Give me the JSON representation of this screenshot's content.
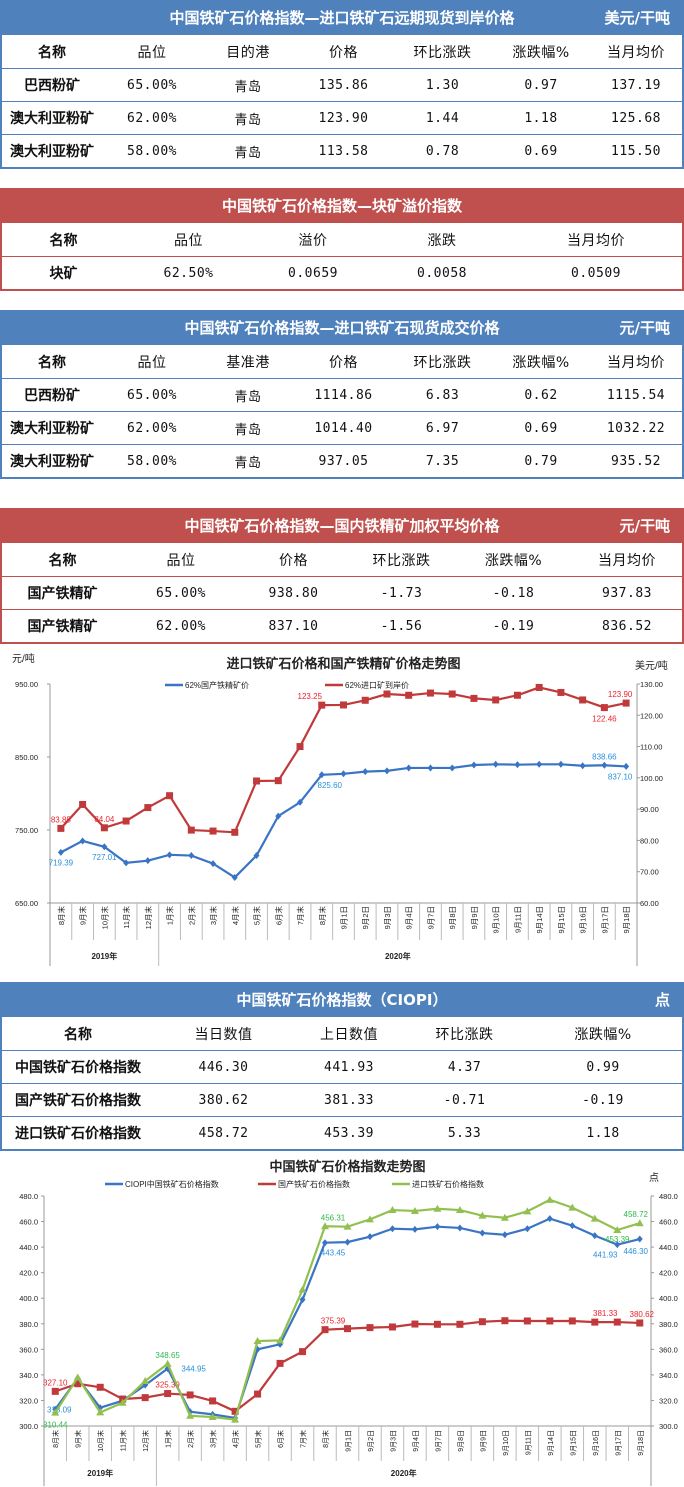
{
  "table1": {
    "title": "中国铁矿石价格指数—进口铁矿石远期现货到岸价格",
    "unit": "美元/干吨",
    "headers": [
      "名称",
      "品位",
      "目的港",
      "价格",
      "环比涨跌",
      "涨跌幅%",
      "当月均价"
    ],
    "rows": [
      [
        "巴西粉矿",
        "65.00%",
        "青岛",
        "135.86",
        "1.30",
        "0.97",
        "137.19"
      ],
      [
        "澳大利亚粉矿",
        "62.00%",
        "青岛",
        "123.90",
        "1.44",
        "1.18",
        "125.68"
      ],
      [
        "澳大利亚粉矿",
        "58.00%",
        "青岛",
        "113.58",
        "0.78",
        "0.69",
        "115.50"
      ]
    ]
  },
  "table2": {
    "title": "中国铁矿石价格指数—块矿溢价指数",
    "headers": [
      "名称",
      "品位",
      "溢价",
      "涨跌",
      "当月均价"
    ],
    "rows": [
      [
        "块矿",
        "62.50%",
        "0.0659",
        "0.0058",
        "0.0509"
      ]
    ]
  },
  "table3": {
    "title": "中国铁矿石价格指数—进口铁矿石现货成交价格",
    "unit": "元/干吨",
    "headers": [
      "名称",
      "品位",
      "基准港",
      "价格",
      "环比涨跌",
      "涨跌幅%",
      "当月均价"
    ],
    "rows": [
      [
        "巴西粉矿",
        "65.00%",
        "青岛",
        "1114.86",
        "6.83",
        "0.62",
        "1115.54"
      ],
      [
        "澳大利亚粉矿",
        "62.00%",
        "青岛",
        "1014.40",
        "6.97",
        "0.69",
        "1032.22"
      ],
      [
        "澳大利亚粉矿",
        "58.00%",
        "青岛",
        "937.05",
        "7.35",
        "0.79",
        "935.52"
      ]
    ]
  },
  "table4": {
    "title": "中国铁矿石价格指数—国内铁精矿加权平均价格",
    "unit": "元/干吨",
    "headers": [
      "名称",
      "品位",
      "价格",
      "环比涨跌",
      "涨跌幅%",
      "当月均价"
    ],
    "rows": [
      [
        "国产铁精矿",
        "65.00%",
        "938.80",
        "-1.73",
        "-0.18",
        "937.83"
      ],
      [
        "国产铁精矿",
        "62.00%",
        "837.10",
        "-1.56",
        "-0.19",
        "836.52"
      ]
    ]
  },
  "table5": {
    "title": "中国铁矿石价格指数（CIOPI）",
    "unit": "点",
    "headers": [
      "名称",
      "当日数值",
      "上日数值",
      "环比涨跌",
      "涨跌幅%"
    ],
    "rows": [
      [
        "中国铁矿石价格指数",
        "446.30",
        "441.93",
        "4.37",
        "0.99"
      ],
      [
        "国产铁矿石价格指数",
        "380.62",
        "381.33",
        "-0.71",
        "-0.19"
      ],
      [
        "进口铁矿石价格指数",
        "458.72",
        "453.39",
        "5.33",
        "1.18"
      ]
    ]
  },
  "colors": {
    "blue": "#4f81bd",
    "red": "#c0504d",
    "line_blue": "#3a74c4",
    "line_red": "#c0393b",
    "line_green": "#92c050"
  },
  "chart_data": [
    {
      "type": "line",
      "title": "进口铁矿石价格和国产铁精矿价格走势图",
      "ylabel_left": "元/吨",
      "ylabel_right": "美元/吨",
      "ylim_left": [
        650,
        950
      ],
      "ylim_right": [
        60,
        130
      ],
      "yticks_left": [
        "650.00",
        "750.00",
        "850.00",
        "950.00"
      ],
      "yticks_right": [
        "60.00",
        "70.00",
        "80.00",
        "90.00",
        "100.00",
        "110.00",
        "120.00",
        "130.00"
      ],
      "categories": [
        "8月末",
        "9月末",
        "10月末",
        "11月末",
        "12月末",
        "1月末",
        "2月末",
        "3月末",
        "4月末",
        "5月末",
        "6月末",
        "7月末",
        "8月末",
        "9月1日",
        "9月2日",
        "9月3日",
        "9月4日",
        "9月7日",
        "9月8日",
        "9月9日",
        "9月10日",
        "9月11日",
        "9月14日",
        "9月15日",
        "9月16日",
        "9月17日",
        "9月18日"
      ],
      "groups": [
        {
          "label": "2019年",
          "count": 5
        },
        {
          "label": "2020年",
          "count": 22
        }
      ],
      "legend": "top",
      "grid": false,
      "series": [
        {
          "name": "62%国产铁精矿价",
          "axis": "left",
          "color": "#3a74c4",
          "marker": "diamond",
          "values": [
            719.39,
            735,
            727.01,
            705,
            708,
            716,
            715,
            704,
            685,
            715,
            769,
            788,
            825.6,
            827,
            830,
            831,
            835,
            835,
            835,
            839,
            840,
            839.5,
            840,
            840,
            838,
            838.66,
            837.1
          ],
          "labels": [
            {
              "i": 0,
              "text": "719.39"
            },
            {
              "i": 2,
              "text": "727.01"
            },
            {
              "i": 12,
              "text": "825.60"
            },
            {
              "i": 25,
              "text": "838.66"
            },
            {
              "i": 26,
              "text": "837.10"
            }
          ]
        },
        {
          "name": "62%进口矿到岸价",
          "axis": "right",
          "color": "#c0393b",
          "marker": "square",
          "values": [
            83.85,
            91.5,
            84.04,
            86.2,
            90.5,
            94.3,
            83.3,
            83,
            82.6,
            99,
            99.1,
            110,
            123.25,
            123.3,
            124.8,
            126.8,
            126.4,
            127.1,
            126.8,
            125.4,
            124.9,
            126.4,
            128.9,
            127.3,
            124.9,
            122.46,
            123.9
          ],
          "labels": [
            {
              "i": 0,
              "text": "83.85"
            },
            {
              "i": 2,
              "text": "84.04"
            },
            {
              "i": 12,
              "text": "123.25"
            },
            {
              "i": 25,
              "text": "122.46"
            },
            {
              "i": 26,
              "text": "123.90"
            }
          ]
        }
      ]
    },
    {
      "type": "line",
      "title": "中国铁矿石价格指数走势图",
      "ylabel_right": "点",
      "ylim_left": [
        300,
        480
      ],
      "ylim_right": [
        300,
        480
      ],
      "yticks_left": [
        "300.0",
        "320.0",
        "340.0",
        "360.0",
        "380.0",
        "400.0",
        "420.0",
        "440.0",
        "460.0",
        "480.0"
      ],
      "yticks_right": [
        "300.0",
        "320.0",
        "340.0",
        "360.0",
        "380.0",
        "400.0",
        "420.0",
        "440.0",
        "460.0",
        "480.0"
      ],
      "categories": [
        "8月末",
        "9月末",
        "10月末",
        "11月末",
        "12月末",
        "1月末",
        "2月末",
        "3月末",
        "4月末",
        "5月末",
        "6月末",
        "7月末",
        "8月末",
        "9月1日",
        "9月2日",
        "9月3日",
        "9月4日",
        "9月7日",
        "9月8日",
        "9月9日",
        "9月10日",
        "9月11日",
        "9月14日",
        "9月15日",
        "9月16日",
        "9月17日",
        "9月18日"
      ],
      "groups": [
        {
          "label": "2019年",
          "count": 5
        },
        {
          "label": "2020年",
          "count": 22
        }
      ],
      "legend": "top",
      "grid": false,
      "series": [
        {
          "name": "CIOPI中国铁矿石价格指数",
          "axis": "left",
          "color": "#3a74c4",
          "marker": "diamond",
          "values": [
            313.09,
            337.3,
            314.3,
            319.8,
            332,
            344.95,
            311.2,
            309.1,
            306.3,
            360,
            363.9,
            398.9,
            443.45,
            443.9,
            448.2,
            454.4,
            453.9,
            456,
            455,
            451,
            449.7,
            454.4,
            462.3,
            456.8,
            449,
            441.93,
            446.3
          ],
          "labels": [
            {
              "i": 0,
              "text": "313.09"
            },
            {
              "i": 5,
              "text": "344.95"
            },
            {
              "i": 12,
              "text": "443.45"
            },
            {
              "i": 25,
              "text": "441.93"
            },
            {
              "i": 26,
              "text": "446.30"
            }
          ]
        },
        {
          "name": "国产铁矿石价格指数",
          "axis": "left",
          "color": "#c0393b",
          "marker": "square",
          "values": [
            327.1,
            333.1,
            330.3,
            321.1,
            322.2,
            325.39,
            324.3,
            319.6,
            311.5,
            325,
            349,
            358.2,
            375.39,
            376.2,
            377,
            377.5,
            379.8,
            379.6,
            379.6,
            381.6,
            382.4,
            382.2,
            382.2,
            382.2,
            381.3,
            381.33,
            380.62
          ],
          "labels": [
            {
              "i": 0,
              "text": "327.10"
            },
            {
              "i": 5,
              "text": "325.39"
            },
            {
              "i": 12,
              "text": "375.39"
            },
            {
              "i": 25,
              "text": "381.33"
            },
            {
              "i": 26,
              "text": "380.62"
            }
          ]
        },
        {
          "name": "进口铁矿石价格指数",
          "axis": "left",
          "color": "#92c050",
          "marker": "triangle",
          "values": [
            310.44,
            338,
            310.7,
            318.2,
            335.2,
            348.65,
            308,
            307,
            305,
            366.5,
            367,
            406.7,
            456.31,
            456,
            461.7,
            469,
            468.3,
            470,
            469,
            464.6,
            463,
            468,
            477,
            470.9,
            462.3,
            453.39,
            458.72
          ],
          "labels": [
            {
              "i": 0,
              "text": "310.44"
            },
            {
              "i": 5,
              "text": "348.65"
            },
            {
              "i": 12,
              "text": "456.31"
            },
            {
              "i": 25,
              "text": "453.39"
            },
            {
              "i": 26,
              "text": "458.72"
            }
          ]
        }
      ]
    }
  ]
}
